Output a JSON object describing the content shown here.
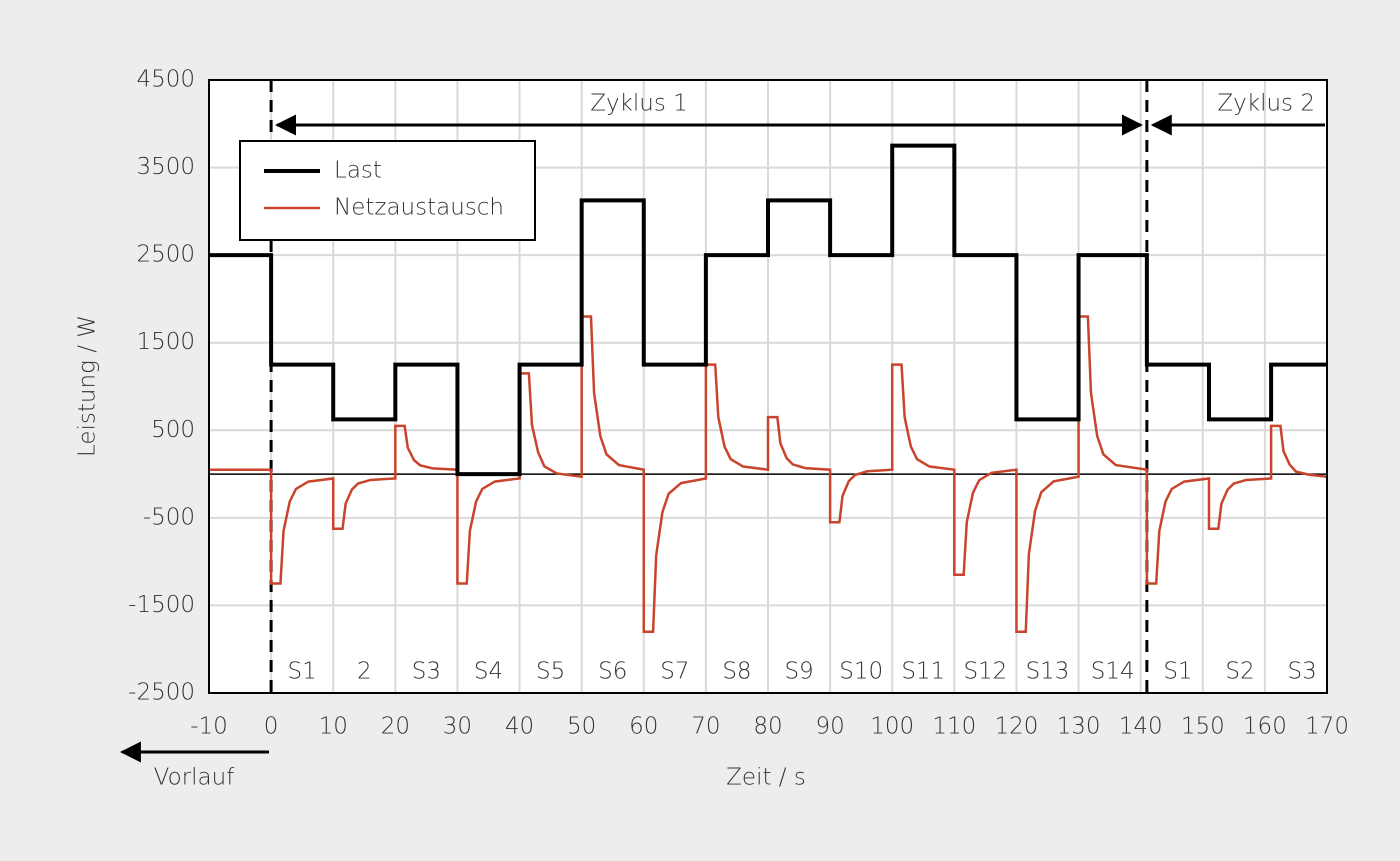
{
  "chart_data": {
    "type": "line",
    "xlabel": "Zeit / s",
    "ylabel": "Leistung / W",
    "xlim": [
      -10,
      170
    ],
    "ylim": [
      -2500,
      4500
    ],
    "xticks": [
      -10,
      0,
      10,
      20,
      30,
      40,
      50,
      60,
      70,
      80,
      90,
      100,
      110,
      120,
      130,
      140,
      150,
      160,
      170
    ],
    "yticks": [
      -2500,
      -1500,
      -500,
      500,
      1500,
      2500,
      3500,
      4500
    ],
    "grid": true,
    "zero_line": true,
    "legend": "upper left",
    "series": [
      {
        "name": "Last",
        "color": "#000000",
        "x": [
          -10,
          0,
          0,
          10,
          10,
          20,
          20,
          30,
          30,
          40,
          40,
          50,
          50,
          60,
          60,
          70,
          70,
          80,
          80,
          90,
          90,
          100,
          100,
          110,
          110,
          120,
          120,
          130,
          130,
          141,
          141,
          151,
          151,
          161,
          161,
          170
        ],
        "values": [
          2500,
          2500,
          1250,
          1250,
          625,
          625,
          1250,
          1250,
          0,
          0,
          1250,
          1250,
          3125,
          3125,
          1250,
          1250,
          2500,
          2500,
          3125,
          3125,
          2500,
          2500,
          3750,
          3750,
          2500,
          2500,
          625,
          625,
          2500,
          2500,
          1250,
          1250,
          625,
          625,
          1250,
          1250
        ]
      },
      {
        "name": "Netzaustausch",
        "color": "#c8442c",
        "x": [
          -10,
          0,
          0,
          1.5,
          2,
          3,
          4,
          6,
          10,
          10,
          11.5,
          12,
          13,
          14,
          16,
          20,
          20,
          21.5,
          22,
          23,
          24,
          26,
          30,
          30,
          31.5,
          32,
          33,
          34,
          36,
          40,
          40,
          41.5,
          42,
          43,
          44,
          46,
          50,
          50,
          51.5,
          52,
          53,
          54,
          56,
          60,
          60,
          61.5,
          62,
          63,
          64,
          66,
          70,
          70,
          71.5,
          72,
          73,
          74,
          76,
          80,
          80,
          81.5,
          82,
          83,
          84,
          86,
          90,
          90,
          91.5,
          92,
          93,
          94,
          96,
          100,
          100,
          101.5,
          102,
          103,
          104,
          106,
          110,
          110,
          111.5,
          112,
          113,
          114,
          116,
          120,
          120,
          121.5,
          122,
          123,
          124,
          126,
          130,
          130,
          131.5,
          132,
          133,
          134,
          136,
          141,
          141,
          142.5,
          143,
          144,
          145,
          147,
          151,
          151,
          152.5,
          153,
          154,
          155,
          157,
          161,
          161,
          162.5,
          163,
          164,
          165,
          167,
          170
        ],
        "values": [
          50,
          50,
          -1250,
          -1250,
          -650,
          -314,
          -170,
          -86,
          -50,
          -625,
          -625,
          -338,
          -177,
          -108,
          -67,
          -50,
          550,
          550,
          300,
          160,
          100,
          65,
          50,
          -1250,
          -1250,
          -650,
          -314,
          -170,
          -86,
          -50,
          1150,
          1150,
          560,
          246,
          88,
          7,
          -30,
          1800,
          1800,
          925,
          435,
          225,
          103,
          50,
          -1800,
          -1800,
          -925,
          -435,
          -225,
          -103,
          -50,
          1250,
          1250,
          650,
          314,
          170,
          86,
          50,
          650,
          650,
          350,
          182,
          110,
          68,
          50,
          -550,
          -550,
          -250,
          -82,
          -10,
          32,
          50,
          1250,
          1250,
          650,
          314,
          170,
          86,
          50,
          -1150,
          -1150,
          -550,
          -214,
          -70,
          14,
          50,
          -1800,
          -1800,
          -915,
          -420,
          -207,
          -83,
          -30,
          1800,
          1800,
          925,
          435,
          225,
          103,
          50,
          -1250,
          -1250,
          -650,
          -314,
          -170,
          -86,
          -50,
          -625,
          -625,
          -338,
          -177,
          -108,
          -67,
          -50,
          550,
          550,
          260,
          107,
          28,
          -6,
          -30
        ]
      }
    ],
    "cycles": [
      {
        "label": "Zyklus 1",
        "start": 0,
        "end": 141
      },
      {
        "label": "Zyklus 2",
        "start": 141,
        "end": 170
      }
    ],
    "segment_labels": [
      {
        "text": "S1",
        "x": 5
      },
      {
        "text": "2",
        "x": 15
      },
      {
        "text": "S3",
        "x": 25
      },
      {
        "text": "S4",
        "x": 35
      },
      {
        "text": "S5",
        "x": 45
      },
      {
        "text": "S6",
        "x": 55
      },
      {
        "text": "S7",
        "x": 65
      },
      {
        "text": "S8",
        "x": 75
      },
      {
        "text": "S9",
        "x": 85
      },
      {
        "text": "S10",
        "x": 95
      },
      {
        "text": "S11",
        "x": 105
      },
      {
        "text": "S12",
        "x": 115
      },
      {
        "text": "S13",
        "x": 125
      },
      {
        "text": "S14",
        "x": 135.5
      },
      {
        "text": "S1",
        "x": 146
      },
      {
        "text": "S2",
        "x": 156
      },
      {
        "text": "S3",
        "x": 166
      }
    ],
    "lead_in_label": "Vorlauf"
  }
}
